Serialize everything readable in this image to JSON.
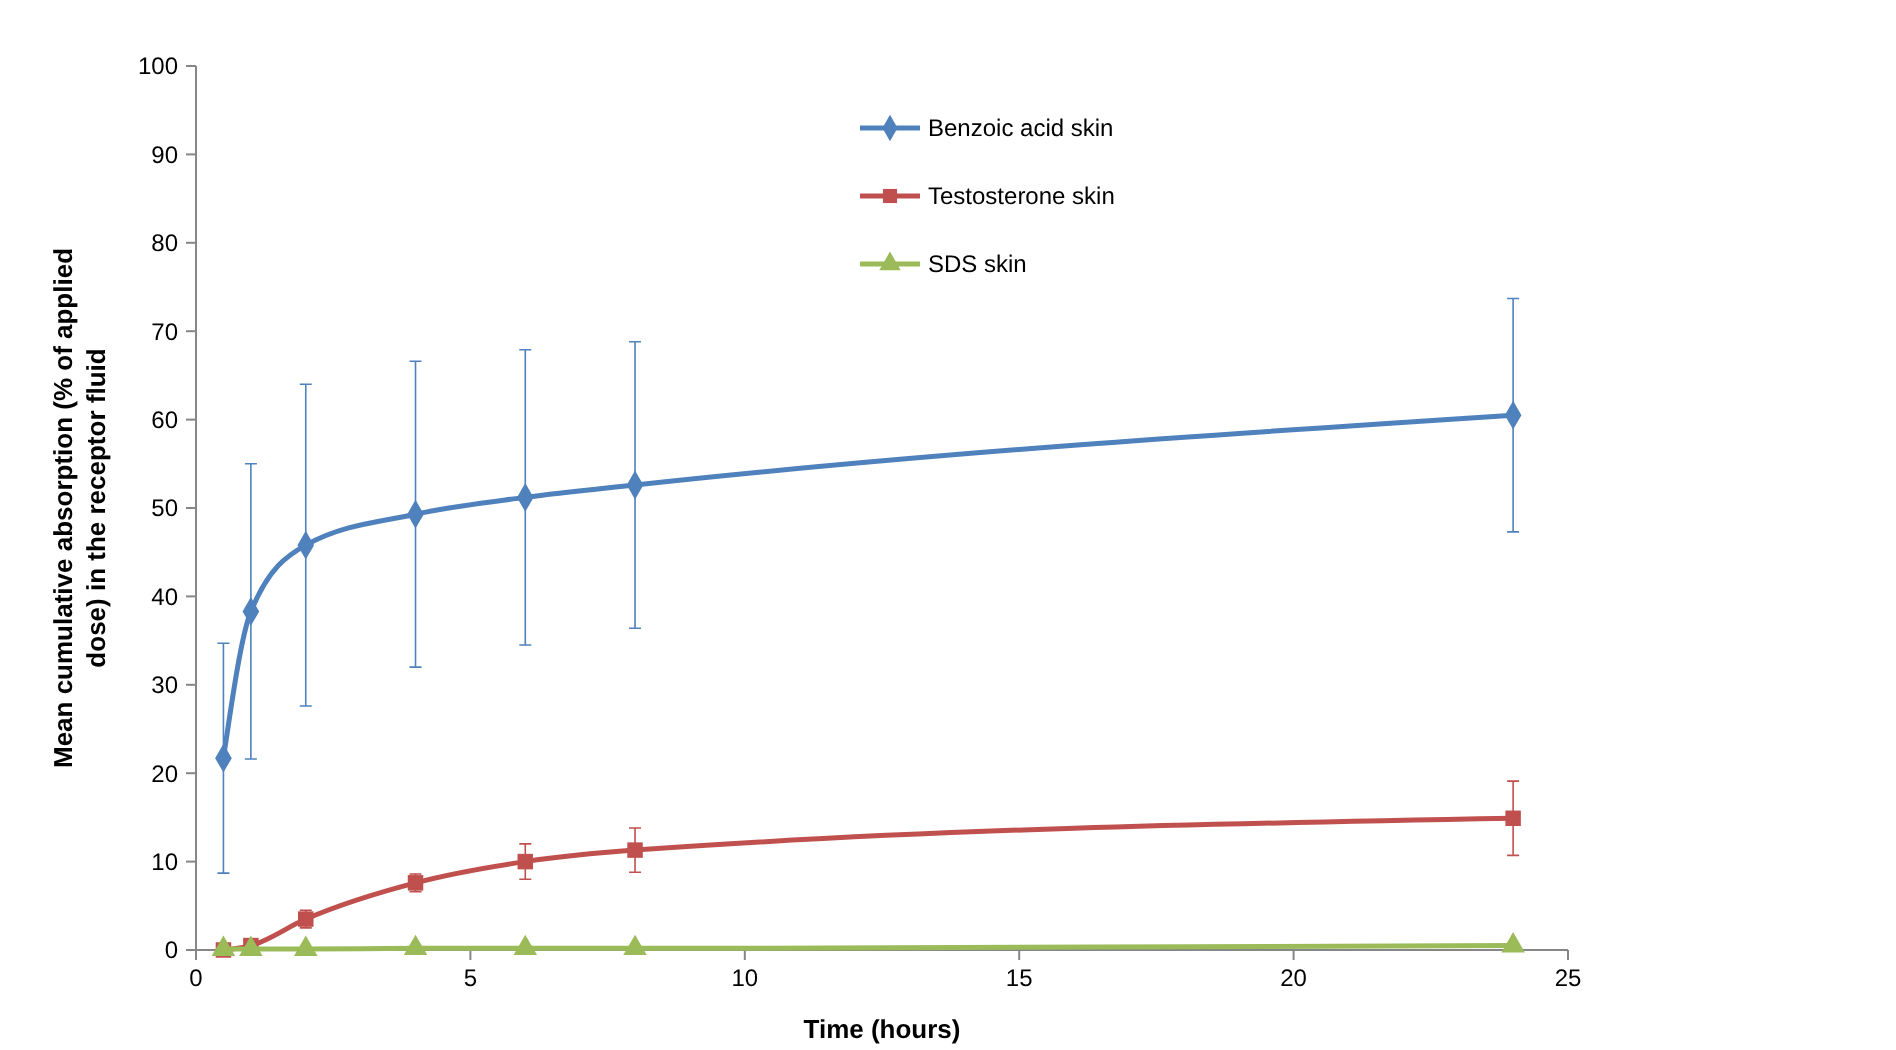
{
  "chart_data": {
    "type": "line",
    "xlabel": "Time (hours)",
    "ylabel": "Mean cumulative absorption (% of applied dose) in the receptor fluid",
    "x": [
      0.5,
      1,
      2,
      4,
      6,
      8,
      24
    ],
    "series": [
      {
        "name": "Benzoic acid skin",
        "color": "#4f81bd",
        "marker": "diamond",
        "values": [
          21.7,
          38.3,
          45.8,
          49.3,
          51.2,
          52.6,
          60.5
        ],
        "errors": [
          13,
          16.7,
          18.2,
          17.3,
          16.7,
          16.2,
          13.2
        ]
      },
      {
        "name": "Testosterone skin",
        "color": "#c0504d",
        "marker": "square",
        "values": [
          0,
          0.5,
          3.5,
          7.6,
          10.0,
          11.3,
          14.9
        ],
        "errors": [
          null,
          null,
          1,
          1,
          2,
          2.5,
          4.2
        ]
      },
      {
        "name": "SDS skin",
        "color": "#9bbb59",
        "marker": "triangle",
        "values": [
          0.1,
          0.1,
          0.1,
          0.2,
          0.2,
          0.2,
          0.5
        ]
      }
    ],
    "xlim": [
      0,
      25
    ],
    "xticks": [
      0,
      5,
      10,
      15,
      20,
      25
    ],
    "ylim": [
      0,
      100
    ],
    "yticks": [
      0,
      10,
      20,
      30,
      40,
      50,
      60,
      70,
      80,
      90,
      100
    ],
    "grid": false,
    "legend": "top",
    "line_style": "solid"
  }
}
